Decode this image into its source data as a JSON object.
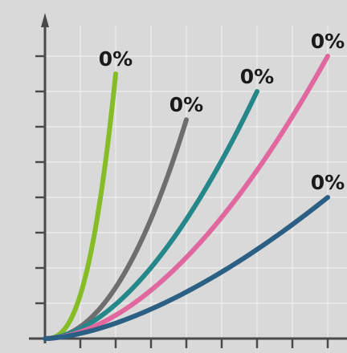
{
  "chart_data": {
    "type": "line",
    "title": "",
    "xlabel": "",
    "ylabel": "",
    "grid": true,
    "legend": "none",
    "x_ticks": 9,
    "y_ticks": 8,
    "xlim": [
      0,
      9
    ],
    "ylim": [
      0,
      9
    ],
    "series": [
      {
        "label": "0%",
        "color": "#86bc25",
        "end": [
          2,
          7.5
        ],
        "exponent": 2.6
      },
      {
        "label": "0%",
        "color": "#6e6e6e",
        "end": [
          4,
          6.2
        ],
        "exponent": 2.1
      },
      {
        "label": "0%",
        "color": "#26878a",
        "end": [
          6,
          7.0
        ],
        "exponent": 1.8
      },
      {
        "label": "0%",
        "color": "#e0689e",
        "end": [
          8,
          8.0
        ],
        "exponent": 1.8
      },
      {
        "label": "0%",
        "color": "#2b5f84",
        "end": [
          8,
          4.0
        ],
        "exponent": 1.6
      }
    ]
  }
}
